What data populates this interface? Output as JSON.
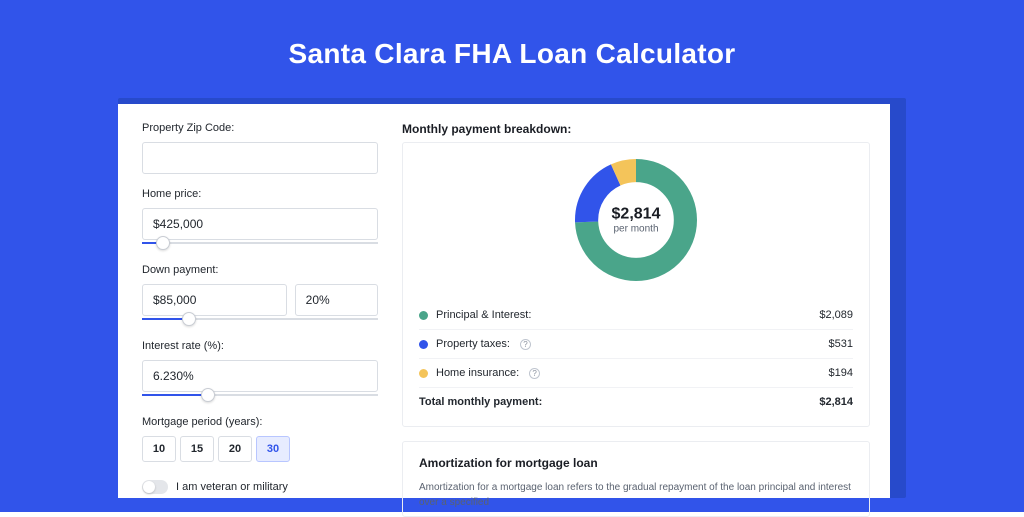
{
  "page": {
    "bg_color": "#3154ea",
    "shadow_color": "#274acb",
    "card_bg": "#ffffff"
  },
  "title": "Santa Clara FHA Loan Calculator",
  "form": {
    "zip": {
      "label": "Property Zip Code:",
      "value": ""
    },
    "home_price": {
      "label": "Home price:",
      "value": "$425,000",
      "slider_pct": 9
    },
    "down_payment": {
      "label": "Down payment:",
      "value": "$85,000",
      "pct_value": "20%",
      "slider_pct": 20
    },
    "interest_rate": {
      "label": "Interest rate (%):",
      "value": "6.230%",
      "slider_pct": 28
    },
    "period": {
      "label": "Mortgage period (years):",
      "options": [
        "10",
        "15",
        "20",
        "30"
      ],
      "selected": "30"
    },
    "veteran": {
      "label": "I am veteran or military",
      "checked": false
    }
  },
  "breakdown": {
    "title": "Monthly payment breakdown:",
    "center_amount": "$2,814",
    "center_sub": "per month",
    "donut": {
      "type": "donut",
      "values": [
        2089,
        531,
        194
      ],
      "colors": [
        "#4aa58a",
        "#3154ea",
        "#f4c45a"
      ],
      "background": "#ffffff",
      "inner_radius_pct": 62,
      "rotation_deg": -90
    },
    "items": [
      {
        "label": "Principal & Interest:",
        "value": "$2,089",
        "color": "#4aa58a",
        "info": false
      },
      {
        "label": "Property taxes:",
        "value": "$531",
        "color": "#3154ea",
        "info": true
      },
      {
        "label": "Home insurance:",
        "value": "$194",
        "color": "#f4c45a",
        "info": true
      }
    ],
    "total_label": "Total monthly payment:",
    "total_value": "$2,814"
  },
  "amortization": {
    "title": "Amortization for mortgage loan",
    "text": "Amortization for a mortgage loan refers to the gradual repayment of the loan principal and interest over a specified"
  }
}
